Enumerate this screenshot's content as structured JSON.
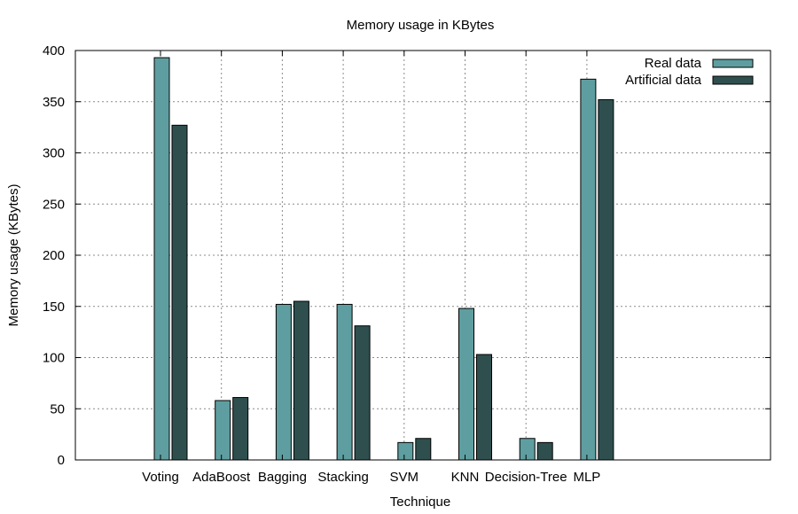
{
  "chart_data": {
    "type": "bar",
    "title": "Memory usage in KBytes",
    "xlabel": "Technique",
    "ylabel": "Memory usage (KBytes)",
    "ylim": [
      0,
      400
    ],
    "yticks": [
      0,
      50,
      100,
      150,
      200,
      250,
      300,
      350,
      400
    ],
    "grid": true,
    "legend_position": "top-right",
    "categories": [
      "Voting",
      "AdaBoost",
      "Bagging",
      "Stacking",
      "SVM",
      "KNN",
      "Decision-Tree",
      "MLP"
    ],
    "series": [
      {
        "name": "Real data",
        "color": "#5f9ea0",
        "values": [
          393,
          58,
          152,
          152,
          17,
          148,
          21,
          372
        ]
      },
      {
        "name": "Artificial data",
        "color": "#2f4f4f",
        "values": [
          327,
          61,
          155,
          131,
          21,
          103,
          17,
          352
        ]
      }
    ]
  }
}
